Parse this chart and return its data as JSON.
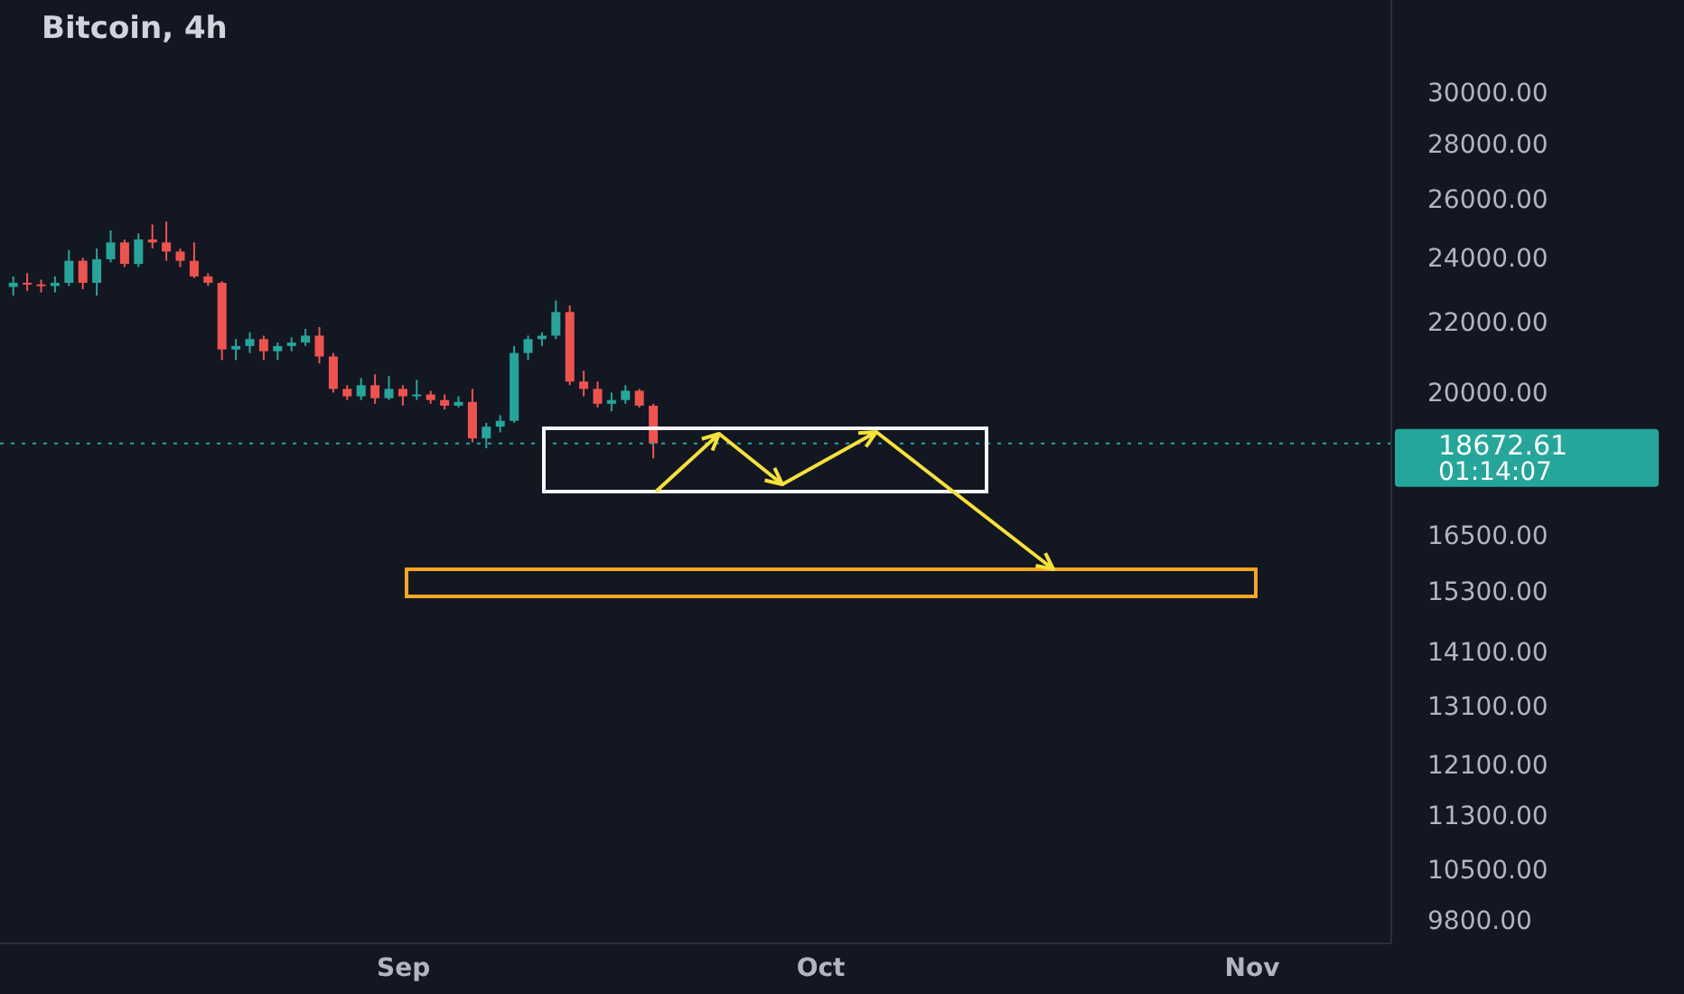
{
  "chart_data": {
    "type": "candlestick",
    "title": "Bitcoin, 4h",
    "x": [
      "--08-04",
      "--08-05",
      "--08-06",
      "--08-07",
      "--08-08",
      "--08-09",
      "--08-10",
      "--08-11",
      "--08-12",
      "--08-13",
      "--08-14",
      "--08-15",
      "--08-16",
      "--08-17",
      "--08-18",
      "--08-19",
      "--08-20",
      "--08-21",
      "--08-22",
      "--08-23",
      "--08-24",
      "--08-25",
      "--08-26",
      "--08-27",
      "--08-28",
      "--08-29",
      "--08-30",
      "--08-31",
      "--09-01",
      "--09-02",
      "--09-03",
      "--09-04",
      "--09-05",
      "--09-06",
      "--09-07",
      "--09-08",
      "--09-09",
      "--09-10",
      "--09-11",
      "--09-12",
      "--09-13",
      "--09-14",
      "--09-15",
      "--09-16",
      "--09-17",
      "--09-18",
      "--09-19"
    ],
    "ohlc": [
      [
        23070,
        23400,
        22800,
        23200
      ],
      [
        23200,
        23500,
        22950,
        23150
      ],
      [
        23150,
        23300,
        22900,
        23100
      ],
      [
        23100,
        23400,
        22900,
        23200
      ],
      [
        23200,
        24250,
        23100,
        23900
      ],
      [
        23900,
        24000,
        23000,
        23200
      ],
      [
        23200,
        24300,
        22800,
        23950
      ],
      [
        23950,
        24900,
        23850,
        24500
      ],
      [
        24500,
        24600,
        23700,
        23800
      ],
      [
        23800,
        24800,
        23700,
        24600
      ],
      [
        24600,
        25100,
        24300,
        24500
      ],
      [
        24500,
        25200,
        23900,
        24200
      ],
      [
        24200,
        24300,
        23700,
        23900
      ],
      [
        23900,
        24500,
        23350,
        23400
      ],
      [
        23400,
        23500,
        23100,
        23200
      ],
      [
        23200,
        23250,
        20900,
        21200
      ],
      [
        21200,
        21500,
        20900,
        21300
      ],
      [
        21300,
        21700,
        21100,
        21500
      ],
      [
        21500,
        21600,
        20900,
        21150
      ],
      [
        21150,
        21400,
        20900,
        21300
      ],
      [
        21300,
        21550,
        21150,
        21400
      ],
      [
        21400,
        21800,
        21300,
        21600
      ],
      [
        21600,
        21850,
        20800,
        21000
      ],
      [
        21000,
        21100,
        20000,
        20100
      ],
      [
        20100,
        20200,
        19800,
        19900
      ],
      [
        19900,
        20400,
        19800,
        20200
      ],
      [
        20200,
        20500,
        19700,
        19850
      ],
      [
        19850,
        20450,
        19800,
        20100
      ],
      [
        20100,
        20200,
        19650,
        19900
      ],
      [
        19900,
        20350,
        19800,
        19950
      ],
      [
        19950,
        20050,
        19700,
        19800
      ],
      [
        19800,
        19950,
        19550,
        19650
      ],
      [
        19650,
        19900,
        19600,
        19750
      ],
      [
        19750,
        20100,
        18700,
        18800
      ],
      [
        18800,
        19200,
        18550,
        19100
      ],
      [
        19100,
        19400,
        18950,
        19250
      ],
      [
        19250,
        21300,
        19200,
        21100
      ],
      [
        21100,
        21600,
        20900,
        21500
      ],
      [
        21500,
        21700,
        21300,
        21600
      ],
      [
        21600,
        22650,
        21500,
        22300
      ],
      [
        22300,
        22500,
        20200,
        20300
      ],
      [
        20300,
        20600,
        19900,
        20100
      ],
      [
        20100,
        20300,
        19600,
        19700
      ],
      [
        19700,
        20000,
        19500,
        19800
      ],
      [
        19800,
        20200,
        19700,
        20050
      ],
      [
        20050,
        20100,
        19600,
        19650
      ],
      [
        19650,
        19700,
        18300,
        18672.61
      ]
    ],
    "colors": [
      "#26a69a",
      "#ef5350",
      "#ef5350",
      "#26a69a",
      "#26a69a",
      "#ef5350",
      "#26a69a",
      "#26a69a",
      "#ef5350",
      "#26a69a",
      "#ef5350",
      "#ef5350",
      "#ef5350",
      "#ef5350",
      "#ef5350",
      "#ef5350",
      "#26a69a",
      "#26a69a",
      "#ef5350",
      "#26a69a",
      "#26a69a",
      "#26a69a",
      "#ef5350",
      "#ef5350",
      "#ef5350",
      "#26a69a",
      "#ef5350",
      "#26a69a",
      "#ef5350",
      "#26a69a",
      "#ef5350",
      "#ef5350",
      "#26a69a",
      "#ef5350",
      "#26a69a",
      "#26a69a",
      "#26a69a",
      "#26a69a",
      "#26a69a",
      "#26a69a",
      "#ef5350",
      "#ef5350",
      "#ef5350",
      "#26a69a",
      "#26a69a",
      "#ef5350",
      "#ef5350"
    ],
    "log": true,
    "ylim": [
      9500,
      34000
    ],
    "yticks": [
      {
        "value": 30000,
        "label": "30000.00"
      },
      {
        "value": 28000,
        "label": "28000.00"
      },
      {
        "value": 26000,
        "label": "26000.00"
      },
      {
        "value": 24000,
        "label": "24000.00"
      },
      {
        "value": 22000,
        "label": "22000.00"
      },
      {
        "value": 20000,
        "label": "20000.00"
      },
      {
        "value": 16500,
        "label": "16500.00"
      },
      {
        "value": 15300,
        "label": "15300.00"
      },
      {
        "value": 14100,
        "label": "14100.00"
      },
      {
        "value": 13100,
        "label": "13100.00"
      },
      {
        "value": 12100,
        "label": "12100.00"
      },
      {
        "value": 11300,
        "label": "11300.00"
      },
      {
        "value": 10500,
        "label": "10500.00"
      },
      {
        "value": 9800,
        "label": "9800.00"
      }
    ],
    "xlim": [
      "--08-03",
      "--11-11"
    ],
    "xticks": [
      {
        "value": "--09-01",
        "label": "Sep"
      },
      {
        "value": "--10-01",
        "label": "Oct"
      },
      {
        "value": "--11-01",
        "label": "Nov"
      }
    ],
    "ref_lines": [
      {
        "axis": "y",
        "value": 18672.61,
        "label": "18672.61",
        "color": "#26a69a",
        "line_style": "dotted"
      }
    ],
    "annotations": [
      "01:14:07"
    ]
  }
}
